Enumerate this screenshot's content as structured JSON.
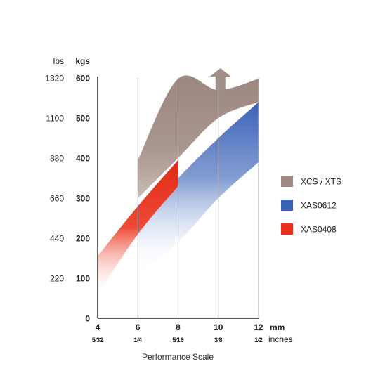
{
  "chart_data": {
    "type": "area",
    "title": "",
    "xlabel": "Performance Scale",
    "x_units": [
      "mm",
      "inches"
    ],
    "x_ticks": [
      {
        "mm": "4",
        "inch": "5⁄32"
      },
      {
        "mm": "6",
        "inch": "1⁄4"
      },
      {
        "mm": "8",
        "inch": "5⁄16"
      },
      {
        "mm": "10",
        "inch": "3⁄8"
      },
      {
        "mm": "12",
        "inch": "1⁄2"
      }
    ],
    "xlim": [
      4,
      12
    ],
    "y_units": [
      "lbs",
      "kgs"
    ],
    "y_ticks_kgs": [
      "0",
      "100",
      "200",
      "300",
      "400",
      "500",
      "600"
    ],
    "y_ticks_lbs": [
      "220",
      "440",
      "660",
      "880",
      "1100",
      "1320"
    ],
    "ylim": [
      0,
      600
    ],
    "grid": "vertical lines at 6, 8, 10, 12",
    "legend_position": "right",
    "series": [
      {
        "name": "XCS / XTS",
        "color": "#9f8a83",
        "x_range": [
          6,
          12
        ],
        "upper": [
          [
            6,
            395
          ],
          [
            8,
            598
          ],
          [
            10,
            570
          ],
          [
            12,
            598
          ]
        ],
        "lower": [
          [
            6,
            300
          ],
          [
            8,
            400
          ],
          [
            10,
            500
          ],
          [
            12,
            540
          ]
        ],
        "open_ended_top": true
      },
      {
        "name": "XAS0612",
        "color": "#3a63b4",
        "x_range": [
          6,
          12
        ],
        "upper": [
          [
            6,
            240
          ],
          [
            8,
            350
          ],
          [
            10,
            450
          ],
          [
            12,
            540
          ]
        ],
        "lower": [
          [
            6,
            110
          ],
          [
            8,
            190
          ],
          [
            10,
            300
          ],
          [
            12,
            390
          ]
        ]
      },
      {
        "name": "XAS0408",
        "color": "#e8301c",
        "x_range": [
          4,
          8
        ],
        "upper": [
          [
            4,
            155
          ],
          [
            6,
            280
          ],
          [
            8,
            395
          ]
        ],
        "lower": [
          [
            4,
            60
          ],
          [
            6,
            210
          ],
          [
            8,
            330
          ]
        ]
      }
    ],
    "annotations": [
      {
        "type": "arrow",
        "direction": "up",
        "x": 10,
        "y": 600
      }
    ]
  }
}
